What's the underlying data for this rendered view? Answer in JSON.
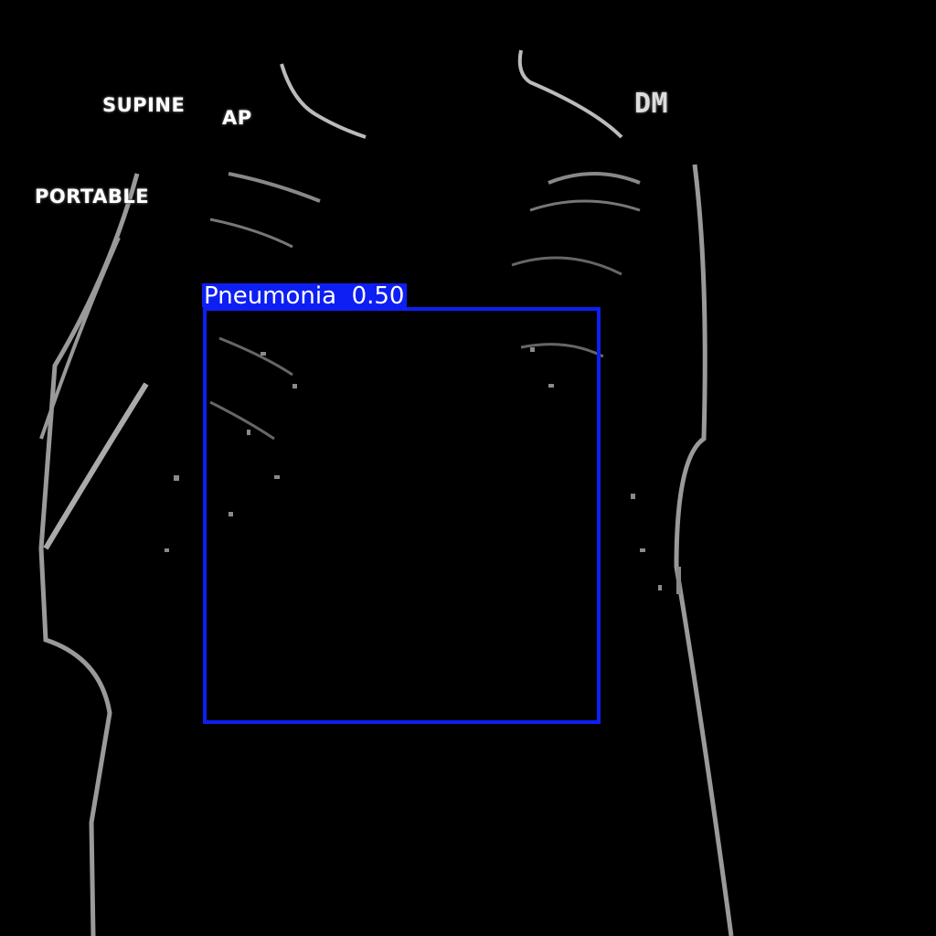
{
  "image": {
    "markers": {
      "supine": "SUPINE",
      "ap": "AP",
      "portable": "PORTABLE",
      "side_marker": "DM"
    }
  },
  "detection": {
    "label": "Pneumonia",
    "confidence": "0.50",
    "box_color": "#0d1ff2"
  }
}
